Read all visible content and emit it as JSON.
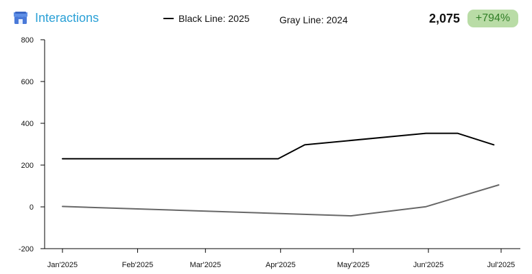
{
  "header": {
    "title": "Interactions",
    "icon": "store-icon",
    "legend_black": "Black Line: 2025",
    "legend_gray": "Gray Line: 2024",
    "total": "2,075",
    "change": "+794%"
  },
  "colors": {
    "title": "#2aa0d6",
    "series_2025": "#000000",
    "series_2024": "#666666",
    "badge_bg": "#b9dca6",
    "badge_text": "#2f7d25"
  },
  "chart_data": {
    "type": "line",
    "title": "",
    "xlabel": "",
    "ylabel": "",
    "ylim": [
      -200,
      800
    ],
    "yticks": [
      -200,
      0,
      200,
      400,
      600,
      800
    ],
    "ytick_labels": [
      "-200",
      "0",
      "200",
      "400",
      "600",
      "800"
    ],
    "xlim": [
      "2025-01-01",
      "2025-07-01"
    ],
    "xticks": [
      "2025-01-01",
      "2025-02-01",
      "2025-03-01",
      "2025-04-01",
      "2025-05-01",
      "2025-06-01",
      "2025-07-01"
    ],
    "xtick_labels": [
      "Jan'2025",
      "Feb'2025",
      "Mar'2025",
      "Apr'2025",
      "May'2025",
      "Jun'2025",
      "Jul'2025"
    ],
    "grid": false,
    "legend": "top",
    "series": [
      {
        "name": "Black Line: 2025",
        "x": [
          "2025-01-01",
          "2025-03-31",
          "2025-04-11",
          "2025-05-31",
          "2025-06-13",
          "2025-06-28"
        ],
        "y": [
          230,
          230,
          297,
          352,
          352,
          297
        ]
      },
      {
        "name": "Gray Line: 2024",
        "x": [
          "2025-01-01",
          "2025-04-30",
          "2025-05-31",
          "2025-06-30"
        ],
        "y": [
          2,
          -43,
          1,
          105
        ]
      }
    ]
  }
}
